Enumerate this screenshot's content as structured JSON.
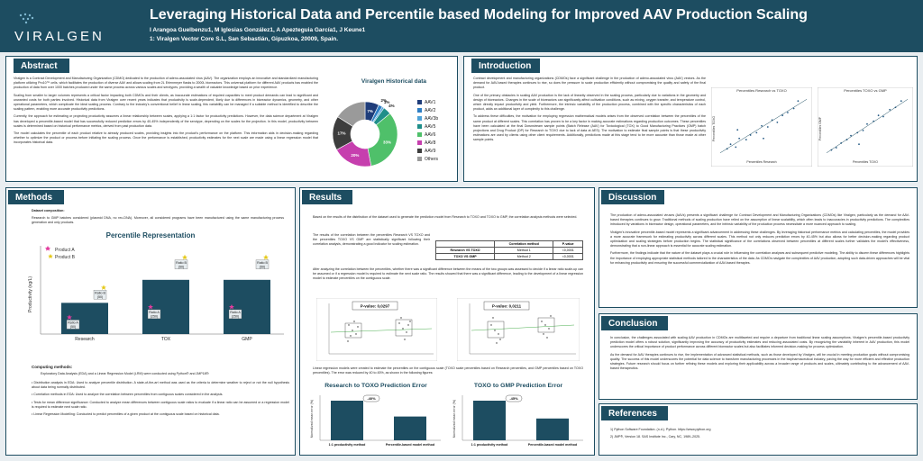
{
  "header": {
    "logo_text": "VIRALGEN",
    "title": "Leveraging Historical Data and Percentile based Modeling for Improved AAV Production Scaling",
    "authors": "I Arangoa Guelbenzu1, M Iglesias González1, A Apezteguia García1, J Keune1",
    "affiliation": "1: Viralgen Vector Core S.L, San Sebastián, Gipuzkoa, 20009, Spain."
  },
  "sections": {
    "abstract": "Abstract",
    "introduction": "Introduction",
    "methods": "Methods",
    "results": "Results",
    "discussion": "Discussion",
    "conclusion": "Conclusion",
    "references": "References"
  },
  "abstract": {
    "p1": "Viralgen is a Contract Development and Manufacturing Organization (CDMO) dedicated to the production of adeno-associated virus (AAV). The organization employs an innovative and standardized manufacturing platform utilizing Pro10™ cells, which facilitates the production of diverse AAV and allows scaling from 2L Erlenmeyer flasks to 2000L bioreactors. This universal platform for different AAV products has enabled the production of data from over 1000 batches produced under the same process across various scales and serotypes, providing a wealth of valuable knowledge based on prior experience.",
    "p2": "Scaling from smaller to larger volumes represents a critical factor impacting both CDMOs and their clients, as inaccurate estimations of required capacities to meet product demands can lead to significant and unwanted costs for both parties involved. Historical data from Viralgen over recent years indicates that productivity is scale-dependent, likely due to differences in bioreactor dynamics, geometry, and other operational parameters, which complicate the ideal scaling process. Contrary to the industry's conventional belief in linear scaling, this variability can be managed if a suitable method is identified to describe the scaling pattern, enabling more accurate productivity predictions.",
    "p3": "Currently, the approach for estimating or projecting productivity assumes a linear relationship between scales, applying a 1:1 factor for productivity predictions. However, the data science department at Viralgen has developed a percentile-based model that has successfully reduced prediction errors by 40-45% independently of the serotype, depending on the scales for the projection. In this model, productivity between scales is determined based on historical performance metrics, derived from past production data.",
    "p4": "The model calculates the percentile of each product relative to already produced scales, providing insights into the product's performance on the platform. This information aids in decision-making regarding whether to optimize the product or process before initiating the scaling process. Once the performance is established, productivity estimates for the next scale are made using a linear regression model that incorporates historical data."
  },
  "pie": {
    "title": "Viralgen Historical data",
    "slices": [
      {
        "label": "AAV1",
        "value": 7,
        "color": "#1f3d7a"
      },
      {
        "label": "AAV2",
        "value": 2,
        "color": "#2f7fc4"
      },
      {
        "label": "AAV3b",
        "value": 1,
        "color": "#4fa3d9"
      },
      {
        "label": "AAV5",
        "value": 4,
        "color": "#1f8f8a"
      },
      {
        "label": "AAV6",
        "value": 33,
        "color": "#4fc06a"
      },
      {
        "label": "AAV8",
        "value": 20,
        "color": "#c63fae"
      },
      {
        "label": "AAV9",
        "value": 17,
        "color": "#3d3d3d"
      },
      {
        "label": "Others",
        "value": 16,
        "color": "#9a9a9a"
      }
    ],
    "pct_labels": [
      "7%",
      "2%",
      "1%",
      "4%",
      "33%",
      "20%",
      "17%"
    ]
  },
  "introduction": {
    "p1": "Contract development and manufacturing organizations (CDMOs) face a significant challenge in the production of adeno-associated virus (AAV) vectors. As the demand for AAV-based therapies continues to rise, so does the pressure to scale production efficiently without compromising the quality and safety of the final product.",
    "p2": "One of the primary obstacles in scaling AAV production is the lack of linearity observed in the scaling process, particularly due to variations in the geometry and design of bioreactors. Changes in the scale of bioreactors can significantly affect cultivation conditions, such as mixing, oxygen transfer, and temperature control, which directly impact productivity and yield. Furthermore, the intrinsic variability of the production process, combined with the specific characteristics of each product, adds an additional layer of complexity to this challenge.",
    "p3": "To address these difficulties, the motivation for employing regression mathematical models arises from the observed correlation between the percentiles of the same product at different scales. This correlation has proven to be a key factor in making accurate estimations regarding production outcomes. These percentiles have been calculated at the final Downstream sample points (Batch Release (AAV) for Toxicological (TOX) to Good Manufacturing Practices (GMP) batch projections and Drug Product (DP) for Research to TOXO due to lack of data at AES). The motivation to estimate final sample points is that these productivity estimations are used by clients using other client requirements. Additionally, predictions made at this stage tend to be more accurate than those made at other sample points."
  },
  "scatter_left": {
    "title": "Percentiles Research vs TOXO",
    "xlabel": "Percentiles Research",
    "ylabel": "Percentiles TOXO",
    "points": [
      [
        0.08,
        0.12
      ],
      [
        0.12,
        0.2
      ],
      [
        0.18,
        0.15
      ],
      [
        0.22,
        0.3
      ],
      [
        0.3,
        0.28
      ],
      [
        0.35,
        0.36
      ],
      [
        0.42,
        0.4
      ],
      [
        0.48,
        0.52
      ],
      [
        0.55,
        0.5
      ],
      [
        0.6,
        0.62
      ],
      [
        0.66,
        0.58
      ],
      [
        0.72,
        0.7
      ],
      [
        0.78,
        0.75
      ],
      [
        0.85,
        0.82
      ],
      [
        0.9,
        0.95
      ],
      [
        0.2,
        0.45
      ],
      [
        0.5,
        0.3
      ]
    ]
  },
  "scatter_right": {
    "title": "Percentiles TOXO vs GMP",
    "xlabel": "Percentiles TOXO",
    "ylabel": "Percentiles GMP",
    "points": [
      [
        0.06,
        0.1
      ],
      [
        0.12,
        0.14
      ],
      [
        0.18,
        0.22
      ],
      [
        0.25,
        0.28
      ],
      [
        0.3,
        0.35
      ],
      [
        0.38,
        0.4
      ],
      [
        0.45,
        0.44
      ],
      [
        0.5,
        0.55
      ],
      [
        0.58,
        0.6
      ],
      [
        0.64,
        0.7
      ],
      [
        0.7,
        0.68
      ],
      [
        0.78,
        0.8
      ],
      [
        0.85,
        0.84
      ],
      [
        0.92,
        0.95
      ],
      [
        0.4,
        0.2
      ]
    ]
  },
  "methods": {
    "dataset_heading": "Dataset composition:",
    "dataset_text": "Research to GMP batches considered (plasmid DNA, no rec-DNA). Moreover, all considered programs have been manufactured using the same manufacturing process generation and only products.",
    "computing_heading": "Computing methods:",
    "computing_intro": "Exploratory Data Analysis (EDA) and a Linear Regression Model (LRM) were conducted using Python® and JMP18®:",
    "bullets": [
      "Distribution analysis in EDA: Used to analyze percentile distribution. A state-of-the-art method was used as the criteria to determine weather to reject or not the null hypothesis about data being normally distributed.",
      "Correlation methods in EDA: Used to analyze the correlation between percentiles from contiguous scales considered in the analysis.",
      "Tests for mean difference significance: Conducted to analyze mean differences between contiguous scale ratios to evaluate if a linear ratio can be assumed or a regression model is required to estimate next scale ratio.",
      "Linear Regression Modelling: Conducted to predict percentiles of a given product at the contiguous scale based on historical data."
    ]
  },
  "chart_data": {
    "type": "bar",
    "title": "Percentile Representation",
    "categories": [
      "Research",
      "TOX",
      "GMP"
    ],
    "ylabel": "Productivity (vg/L)",
    "series": [
      {
        "name": "Product A",
        "values": [
          19,
          33,
          33
        ]
      },
      {
        "name": "Product B",
        "values": [
          19,
          33,
          33
        ]
      }
    ],
    "markers": [
      {
        "category": "Research",
        "product": "Product A",
        "label": "Ratio A (50)"
      },
      {
        "category": "Research",
        "product": "Product B",
        "label": "Ratio B (50)"
      },
      {
        "category": "TOX",
        "product": "Product A",
        "label": "Ratio A (250)"
      },
      {
        "category": "TOX",
        "product": "Product B",
        "label": "Ratio B (50)"
      },
      {
        "category": "GMP",
        "product": "Product A",
        "label": "Ratio A (250)"
      },
      {
        "category": "GMP",
        "product": "Product B",
        "label": "Ratio B (50)"
      }
    ],
    "legend": "top-left"
  },
  "results": {
    "p1": "Based on the results of the distribution of the dataset used to generate the prediction model from Research to TOXO and TOXO to GMP, the correlation analysis methods were selected.",
    "p2": "The results of the correlation between the percentiles Research VS TOXO and the percentiles TOXO VS GMP are statistically significant following their correlation analysis, demonstrating a good indicator for scaling estimation.",
    "p3": "After analyzing the correlation between the percentiles, whether there was a significant difference between the means of the two groups was assessed to decide if a linear ratio scale-up can be assumed or if a regression model is required to estimate the next scale ratio. The results showed that there was a significant difference, leading to the development of a linear regression model to estimate percentiles on the contiguous scale.",
    "p4": "Linear regression models were created to estimate the percentiles on the contiguous scale (TOXO scale percentiles based on Research percentiles, and GMP percentiles based on TOXO percentiles). The error was reduced by 40 to 45%, as shown in the following figures:",
    "table": {
      "headers": [
        "",
        "Correlation method",
        "P-value"
      ],
      "rows": [
        [
          "Research VS TOXO",
          "Method 1",
          "<0,0001"
        ],
        [
          "TOXO VS GMP",
          "Method 2",
          "<0,0001"
        ]
      ]
    },
    "box_left_label": "P-value: 0,0297",
    "box_right_label": "P-value: 0,0211",
    "err_left": {
      "title": "Research to TOXO Prediction Error",
      "ylabel": "Normalized mean error (%)",
      "categories": [
        "1:1 productivity method",
        "Percentile-based model method"
      ],
      "values": [
        1.0,
        0.6
      ],
      "badge": "-40%"
    },
    "err_right": {
      "title": "TOXO to GMP Prediction Error",
      "ylabel": "Normalized mean error (%)",
      "categories": [
        "1:1 productivity method",
        "Percentile-based model method"
      ],
      "values": [
        1.0,
        0.55
      ],
      "badge": "-45%"
    }
  },
  "discussion": {
    "p1": "The production of adeno-associated viruses (AAVs) presents a significant challenge for Contract Development and Manufacturing Organizations (CDMOs) like Viralgen, particularly as the demand for AAV-based therapies continues to grow. Traditional methods of scaling production have relied on the assumption of linear scalability, which often leads to inaccuracies in productivity predictions. The complexities introduced by variations in bioreactor design, operational parameters, and the intrinsic variability of the production process necessitate a more nuanced approach to scaling.",
    "p2": "Viralgen's innovative percentile-based model represents a significant advancement in addressing these challenges. By leveraging historical performance metrics and calculating percentiles, the model provides a more accurate framework for estimating productivity across different scales. This method not only reduces prediction errors by 40-45% but also allows for better decision-making regarding product optimization and scaling strategies before production begins. The statistical significance of the correlations observed between percentiles at different scales further validates the model's effectiveness, demonstrating that a non-linear approach is essential for accurate scaling estimation.",
    "p3": "Furthermore, the findings indicate that the nature of the dataset plays a crucial role in influencing the correlation analyses and subsequent predictive modeling. The ability to discern these differences highlights the importance of employing appropriate statistical methods tailored to the characteristics of the data. As CDMOs navigate the complexities of AAV production, adopting such data-driven approaches will be vital for enhancing productivity and ensuring the successful commercialization of AAV-based therapies."
  },
  "conclusion": {
    "p1": "In conclusion, the challenges associated with scaling AAV production in CDMOs are multifaceted and require a departure from traditional linear scaling assumptions. Viralgen's percentile-based productivity prediction model offers a robust solution, significantly improving the accuracy of productivity estimates and reducing associated costs. By recognizing the variability inherent in AAV production, this model underscores the critical importance of product performance across different bioreactor scales but also facilitates informed decision-making for process optimization.",
    "p2": "As the demand for AAV therapies continues to rise, the implementation of advanced statistical methods, such as those developed by Viralgen, will be crucial in meeting production goals without compromising quality. The success of this model underscores the potential for data science to transform manufacturing processes in the biopharmaceutical industry, paving the way for more efficient and effective production strategies. Future research should focus on further refining these models and exploring their applicability across a broader range of products and scales, ultimately contributing to the advancement of AAV-based therapeutics."
  },
  "references": {
    "items": [
      "1)   Python Software Foundation. (n.d.). Python. https://www.python.org",
      "2)   JMP®, Version 18. SAS Institute Inc., Cary, NC, 1989–2025."
    ]
  }
}
